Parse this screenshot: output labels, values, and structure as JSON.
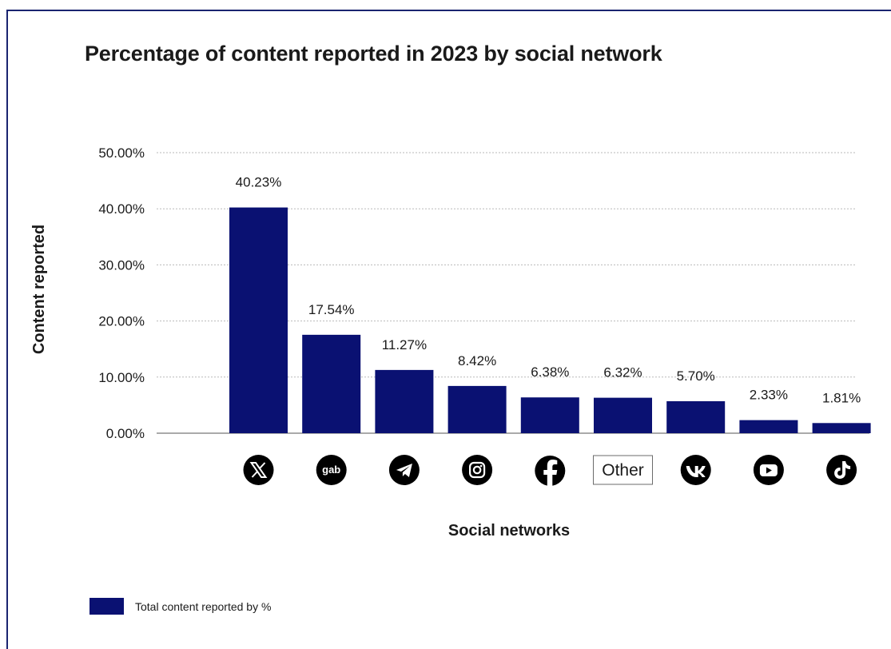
{
  "chart_data": {
    "type": "bar",
    "title": "Percentage of content reported in 2023 by social network",
    "xlabel": "Social networks",
    "ylabel": "Content reported",
    "categories": [
      "X",
      "Gab",
      "Telegram",
      "Instagram",
      "Facebook",
      "Other",
      "VK",
      "YouTube",
      "TikTok"
    ],
    "category_icons": [
      "x-logo-icon",
      "gab-logo-icon",
      "telegram-logo-icon",
      "instagram-logo-icon",
      "facebook-logo-icon",
      "",
      "vk-logo-icon",
      "youtube-logo-icon",
      "tiktok-logo-icon"
    ],
    "other_label": "Other",
    "gab_text": "gab",
    "values": [
      40.23,
      17.54,
      11.27,
      8.42,
      6.38,
      6.32,
      5.7,
      2.33,
      1.81
    ],
    "data_labels": [
      "40.23%",
      "17.54%",
      "11.27%",
      "8.42%",
      "6.38%",
      "6.32%",
      "5.70%",
      "2.33%",
      "1.81%"
    ],
    "ylim": [
      0,
      50
    ],
    "yticks": [
      0,
      10,
      20,
      30,
      40,
      50
    ],
    "ytick_labels": [
      "0.00%",
      "10.00%",
      "20.00%",
      "30.00%",
      "40.00%",
      "50.00%"
    ],
    "grid": true,
    "bar_color": "#0a1172",
    "series_name": "Total content reported by %",
    "legend_position": "bottom-left"
  }
}
